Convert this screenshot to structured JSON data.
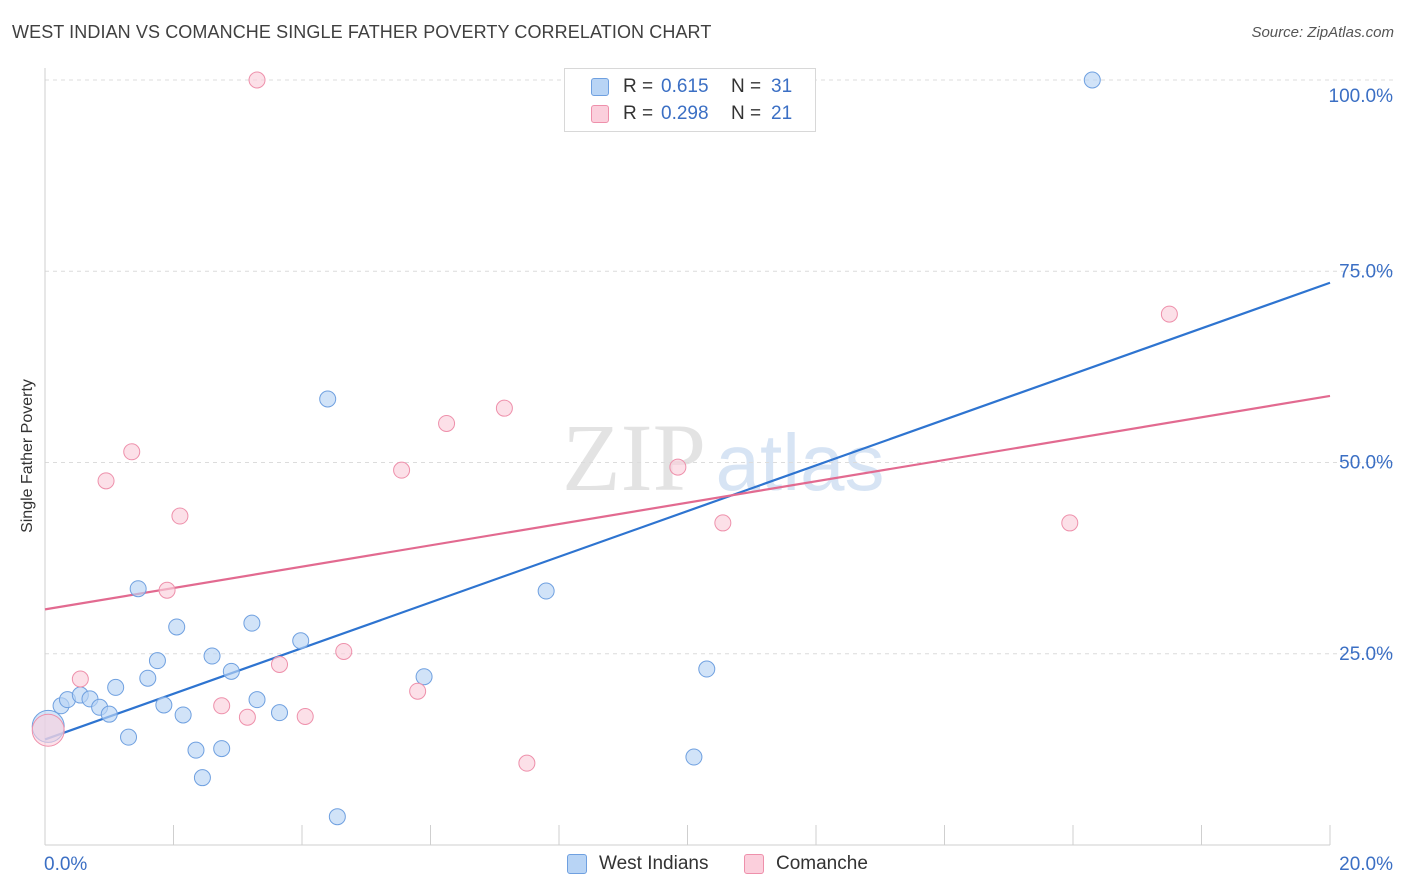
{
  "header": {
    "title": "WEST INDIAN VS COMANCHE SINGLE FATHER POVERTY CORRELATION CHART",
    "source": "Source: ZipAtlas.com"
  },
  "watermark": {
    "zip": "ZIP",
    "atlas": "atlas"
  },
  "legend": {
    "rows": [
      {
        "r_label": "R =",
        "r_value": "0.615",
        "n_label": "N =",
        "n_value": "31",
        "color": "#a9c8f2",
        "border": "#6fa0e0"
      },
      {
        "r_label": "R =",
        "r_value": "0.298",
        "n_label": "N =",
        "n_value": "21",
        "color": "#f9c0d0",
        "border": "#ee90ab"
      }
    ],
    "bottom": [
      {
        "label": "West Indians",
        "color": "#b8d4f5",
        "border": "#6fa0e0"
      },
      {
        "label": "Comanche",
        "color": "#fbcfdc",
        "border": "#ee90ab"
      }
    ]
  },
  "chart_data": {
    "type": "scatter",
    "title": "WEST INDIAN VS COMANCHE SINGLE FATHER POVERTY CORRELATION CHART",
    "xlabel": "",
    "ylabel": "Single Father Poverty",
    "xlim": [
      0,
      20
    ],
    "ylim": [
      0,
      100
    ],
    "x_tick_labels": [
      "0.0%",
      "20.0%"
    ],
    "y_tick_labels": [
      "25.0%",
      "50.0%",
      "75.0%",
      "100.0%"
    ],
    "y_ticks": [
      25,
      50,
      75,
      100
    ],
    "grid": true,
    "legend_position": "top-center",
    "series": [
      {
        "name": "West Indians",
        "color": "#6fa0e0",
        "fill": "#b8d4f5",
        "line_color": "#2e74d0",
        "trend": {
          "x": [
            0,
            20
          ],
          "y": [
            13.8,
            73.5
          ]
        },
        "points": [
          {
            "x": 0.05,
            "y": 15.5,
            "big": true
          },
          {
            "x": 0.25,
            "y": 18.2
          },
          {
            "x": 0.35,
            "y": 19.0
          },
          {
            "x": 0.55,
            "y": 19.6
          },
          {
            "x": 0.7,
            "y": 19.1
          },
          {
            "x": 0.85,
            "y": 18.0
          },
          {
            "x": 1.0,
            "y": 17.1
          },
          {
            "x": 1.1,
            "y": 20.6
          },
          {
            "x": 1.3,
            "y": 14.1
          },
          {
            "x": 1.45,
            "y": 33.5
          },
          {
            "x": 1.6,
            "y": 21.8
          },
          {
            "x": 1.75,
            "y": 24.1
          },
          {
            "x": 1.85,
            "y": 18.3
          },
          {
            "x": 2.05,
            "y": 28.5
          },
          {
            "x": 2.15,
            "y": 17.0
          },
          {
            "x": 2.35,
            "y": 12.4
          },
          {
            "x": 2.45,
            "y": 8.8
          },
          {
            "x": 2.6,
            "y": 24.7
          },
          {
            "x": 2.75,
            "y": 12.6
          },
          {
            "x": 2.9,
            "y": 22.7
          },
          {
            "x": 3.22,
            "y": 29.0
          },
          {
            "x": 3.3,
            "y": 19.0
          },
          {
            "x": 3.65,
            "y": 17.3
          },
          {
            "x": 3.98,
            "y": 26.7
          },
          {
            "x": 4.4,
            "y": 58.3
          },
          {
            "x": 4.55,
            "y": 3.7
          },
          {
            "x": 5.9,
            "y": 22.0
          },
          {
            "x": 7.8,
            "y": 33.2
          },
          {
            "x": 10.1,
            "y": 11.5
          },
          {
            "x": 10.3,
            "y": 23.0
          },
          {
            "x": 16.3,
            "y": 100.0
          }
        ]
      },
      {
        "name": "Comanche",
        "color": "#ee90ab",
        "fill": "#fbcfdc",
        "line_color": "#e26a90",
        "trend": {
          "x": [
            0,
            20
          ],
          "y": [
            30.8,
            58.7
          ]
        },
        "points": [
          {
            "x": 0.05,
            "y": 15.0,
            "big": true
          },
          {
            "x": 0.55,
            "y": 21.7
          },
          {
            "x": 0.95,
            "y": 47.6
          },
          {
            "x": 1.35,
            "y": 51.4
          },
          {
            "x": 1.9,
            "y": 33.3
          },
          {
            "x": 2.1,
            "y": 43.0
          },
          {
            "x": 2.75,
            "y": 18.2
          },
          {
            "x": 3.15,
            "y": 16.7
          },
          {
            "x": 3.3,
            "y": 100.0
          },
          {
            "x": 3.65,
            "y": 23.6
          },
          {
            "x": 4.05,
            "y": 16.8
          },
          {
            "x": 4.65,
            "y": 25.3
          },
          {
            "x": 5.55,
            "y": 49.0
          },
          {
            "x": 5.8,
            "y": 20.1
          },
          {
            "x": 6.25,
            "y": 55.1
          },
          {
            "x": 7.15,
            "y": 57.1
          },
          {
            "x": 7.5,
            "y": 10.7
          },
          {
            "x": 9.85,
            "y": 49.4
          },
          {
            "x": 10.55,
            "y": 42.1
          },
          {
            "x": 15.95,
            "y": 42.1
          },
          {
            "x": 17.5,
            "y": 69.4
          }
        ]
      }
    ]
  }
}
